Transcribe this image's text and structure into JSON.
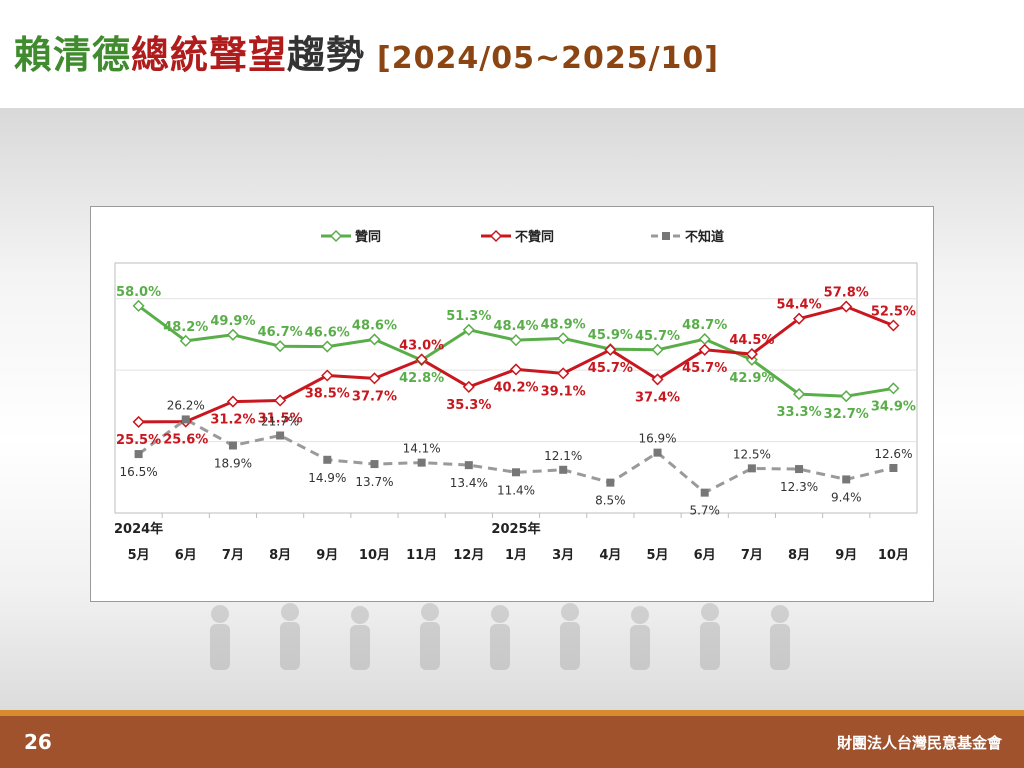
{
  "title": {
    "part1": "賴清德",
    "part2": "總統聲望",
    "part3": "趨勢",
    "range": "[2024/05~2025/10]"
  },
  "footer": {
    "page_number": "26",
    "organization": "財團法人台灣民意基金會"
  },
  "colors": {
    "approve": "#5aae4a",
    "disapprove": "#c8171e",
    "unknown": "#9a9a9a",
    "footer": "#a0522d",
    "footer_line": "#d88a2e"
  },
  "chart_data": {
    "type": "line",
    "categories": [
      "5月",
      "6月",
      "7月",
      "8月",
      "9月",
      "10月",
      "11月",
      "12月",
      "1月",
      "3月",
      "4月",
      "5月",
      "6月",
      "7月",
      "8月",
      "9月",
      "10月"
    ],
    "year_labels": [
      {
        "label": "2024年",
        "category_index": 0
      },
      {
        "label": "2025年",
        "category_index": 8
      }
    ],
    "series": [
      {
        "name": "贊同",
        "values": [
          58.0,
          48.2,
          49.9,
          46.7,
          46.6,
          48.6,
          42.8,
          51.3,
          48.4,
          48.9,
          45.9,
          45.7,
          48.7,
          42.9,
          33.3,
          32.7,
          34.9
        ]
      },
      {
        "name": "不贊同",
        "values": [
          25.5,
          25.6,
          31.2,
          31.5,
          38.5,
          37.7,
          43.0,
          35.3,
          40.2,
          39.1,
          45.7,
          37.4,
          45.7,
          44.5,
          54.4,
          57.8,
          52.5
        ]
      },
      {
        "name": "不知道",
        "values": [
          16.5,
          26.2,
          18.9,
          21.7,
          14.9,
          13.7,
          14.1,
          13.4,
          11.4,
          12.1,
          8.5,
          16.9,
          5.7,
          12.5,
          12.3,
          9.4,
          12.6
        ]
      }
    ],
    "legend_position": "top-center",
    "grid": true,
    "ylim": [
      0,
      70
    ]
  }
}
